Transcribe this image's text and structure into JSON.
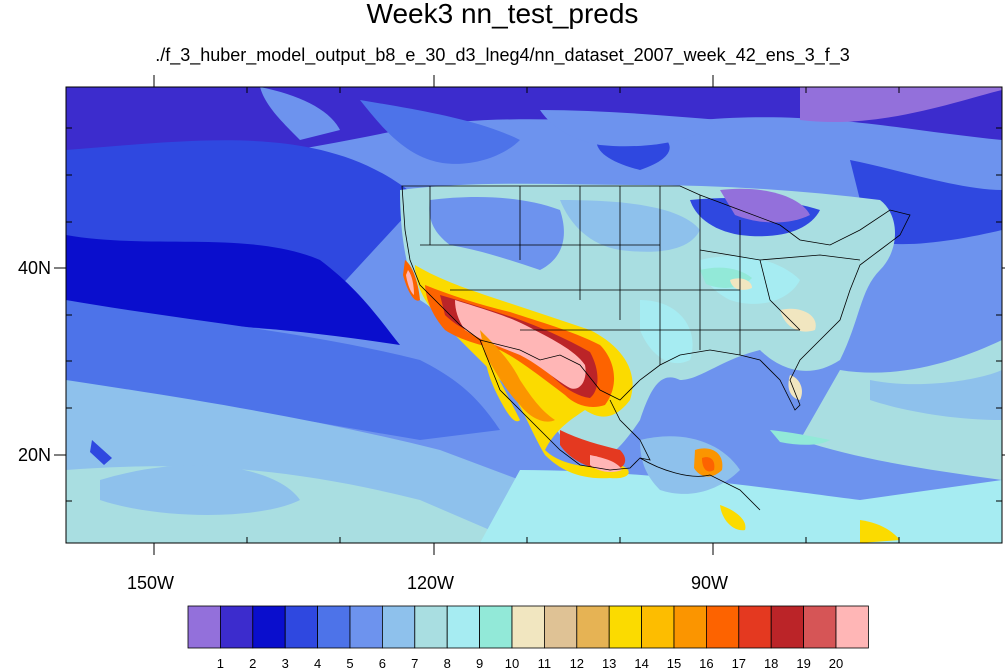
{
  "title": "Week3 nn_test_preds",
  "subtitle": "./f_3_huber_model_output_b8_e_30_d3_lneg4/nn_dataset_2007_week_42_ens_3_f_3",
  "latitude_labels": [
    "40N",
    "20N"
  ],
  "longitude_labels": [
    "150W",
    "120W",
    "90W"
  ],
  "colorbar": {
    "labels": [
      "1",
      "2",
      "3",
      "4",
      "5",
      "6",
      "7",
      "8",
      "9",
      "10",
      "11",
      "12",
      "13",
      "14",
      "15",
      "16",
      "17",
      "18",
      "19",
      "20"
    ],
    "colors": [
      "#9370db",
      "#3c2ccd",
      "#0a0ecd",
      "#2f48e0",
      "#4d73e9",
      "#6d93ee",
      "#8ec1ec",
      "#a9dee1",
      "#a6ecf2",
      "#92e9d8",
      "#f1e6c0",
      "#dfc295",
      "#e6b354",
      "#fbdb00",
      "#fdbd00",
      "#fb9500",
      "#fd6300",
      "#e43920",
      "#bb2428",
      "#d65556",
      "#ffb6b6"
    ]
  }
}
